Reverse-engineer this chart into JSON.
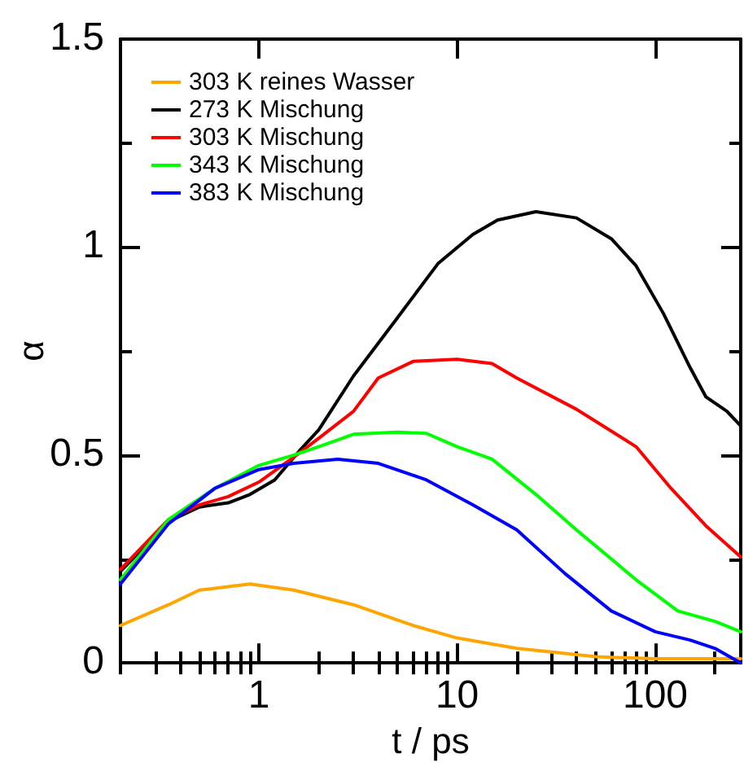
{
  "chart_data": {
    "type": "line",
    "xlabel": "t / ps",
    "ylabel": "α",
    "log": "x",
    "grid": false,
    "legend": "top left",
    "marker": "none",
    "line_style": "solid",
    "xlim": [
      0.2,
      270
    ],
    "ylim": [
      0,
      1.5
    ],
    "xticks": [
      {
        "value": 0.2,
        "label": null
      },
      {
        "value": 0.3,
        "label": null
      },
      {
        "value": 0.4,
        "label": null
      },
      {
        "value": 0.5,
        "label": null
      },
      {
        "value": 0.6,
        "label": null
      },
      {
        "value": 0.7,
        "label": null
      },
      {
        "value": 0.8,
        "label": null
      },
      {
        "value": 0.9,
        "label": null
      },
      1,
      {
        "value": 2,
        "label": null
      },
      {
        "value": 3,
        "label": null
      },
      {
        "value": 4,
        "label": null
      },
      {
        "value": 5,
        "label": null
      },
      {
        "value": 6,
        "label": null
      },
      {
        "value": 7,
        "label": null
      },
      {
        "value": 8,
        "label": null
      },
      {
        "value": 9,
        "label": null
      },
      10,
      {
        "value": 20,
        "label": null
      },
      {
        "value": 30,
        "label": null
      },
      {
        "value": 40,
        "label": null
      },
      {
        "value": 50,
        "label": null
      },
      {
        "value": 60,
        "label": null
      },
      {
        "value": 70,
        "label": null
      },
      {
        "value": 80,
        "label": null
      },
      {
        "value": 90,
        "label": null
      },
      100,
      {
        "value": 200,
        "label": null
      }
    ],
    "yticks": [
      0,
      {
        "value": 0.25,
        "label": null
      },
      0.5,
      {
        "value": 0.75,
        "label": null
      },
      1,
      {
        "value": 1.25,
        "label": null
      },
      1.5
    ],
    "series": [
      {
        "name": "303 K reines Wasser",
        "color": "#ffa500",
        "x": [
          0.2,
          0.35,
          0.5,
          0.9,
          1.5,
          3,
          6,
          10,
          20,
          50,
          100,
          270
        ],
        "values": [
          0.09,
          0.14,
          0.175,
          0.19,
          0.175,
          0.14,
          0.09,
          0.06,
          0.035,
          0.015,
          0.01,
          0.01
        ]
      },
      {
        "name": "273 K Mischung",
        "color": "#000000",
        "x": [
          0.2,
          0.35,
          0.5,
          0.7,
          0.9,
          1.2,
          1.6,
          2,
          3,
          5,
          8,
          12,
          16,
          25,
          40,
          60,
          80,
          110,
          150,
          180,
          230,
          270
        ],
        "values": [
          0.22,
          0.34,
          0.375,
          0.385,
          0.405,
          0.44,
          0.51,
          0.56,
          0.69,
          0.83,
          0.96,
          1.03,
          1.065,
          1.085,
          1.07,
          1.02,
          0.955,
          0.84,
          0.71,
          0.64,
          0.605,
          0.57
        ]
      },
      {
        "name": "303 K Mischung",
        "color": "#ff0000",
        "x": [
          0.2,
          0.35,
          0.5,
          0.7,
          1,
          1.5,
          2,
          3,
          4,
          6,
          10,
          15,
          20,
          40,
          80,
          120,
          180,
          270
        ],
        "values": [
          0.225,
          0.345,
          0.38,
          0.4,
          0.435,
          0.495,
          0.54,
          0.605,
          0.685,
          0.725,
          0.73,
          0.72,
          0.685,
          0.61,
          0.52,
          0.42,
          0.33,
          0.255
        ]
      },
      {
        "name": "343 K Mischung",
        "color": "#00ff00",
        "x": [
          0.2,
          0.35,
          0.6,
          1,
          1.5,
          2,
          3,
          5,
          7,
          10,
          15,
          25,
          40,
          80,
          130,
          200,
          270
        ],
        "values": [
          0.2,
          0.345,
          0.42,
          0.475,
          0.5,
          0.52,
          0.55,
          0.555,
          0.552,
          0.52,
          0.49,
          0.405,
          0.32,
          0.2,
          0.125,
          0.1,
          0.075
        ]
      },
      {
        "name": "383 K Mischung",
        "color": "#0000ff",
        "x": [
          0.2,
          0.35,
          0.6,
          1,
          1.5,
          2.5,
          4,
          7,
          12,
          20,
          35,
          60,
          100,
          150,
          200,
          270
        ],
        "values": [
          0.19,
          0.335,
          0.42,
          0.465,
          0.48,
          0.49,
          0.48,
          0.44,
          0.38,
          0.32,
          0.215,
          0.125,
          0.075,
          0.055,
          0.035,
          0
        ]
      }
    ]
  }
}
